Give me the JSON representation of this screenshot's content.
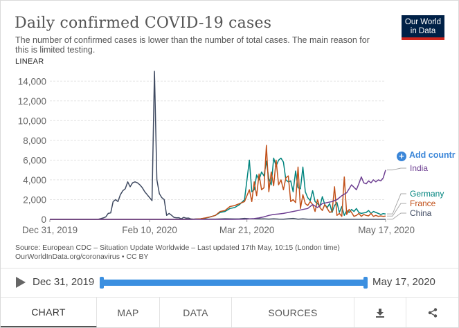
{
  "header": {
    "title": "Daily confirmed COVID-19 cases",
    "subtitle": "The number of confirmed cases is lower than the number of total cases. The main reason for this is limited testing.",
    "logo_line1": "Our World",
    "logo_line2": "in Data"
  },
  "controls": {
    "scale_toggle": "LINEAR",
    "add_country": "Add countr",
    "add_icon": "+"
  },
  "source": {
    "line1": "Source: European CDC – Situation Update Worldwide – Last updated 17th May, 10:15 (London time)",
    "line2": "OurWorldInData.org/coronavirus • CC BY"
  },
  "timeline": {
    "start": "Dec 31, 2019",
    "end": "May 17, 2020",
    "play_icon": "play-icon"
  },
  "tabs": {
    "chart": "CHART",
    "map": "MAP",
    "data": "DATA",
    "sources": "SOURCES",
    "download_icon": "download-icon",
    "share_icon": "share-icon"
  },
  "colors": {
    "china": "#3f4a61",
    "germany": "#00847e",
    "france": "#c15019",
    "india": "#6d3e91",
    "accent": "#3b86d8",
    "logo_bg": "#002147",
    "logo_bar": "#ce261e"
  },
  "chart_data": {
    "type": "line",
    "title": "Daily confirmed COVID-19 cases",
    "xlabel": "",
    "ylabel": "",
    "xlim": [
      0,
      138
    ],
    "ylim": [
      0,
      15000
    ],
    "x_ticks": [
      {
        "day": 0,
        "label": "Dec 31, 2019"
      },
      {
        "day": 41,
        "label": "Feb 10, 2020"
      },
      {
        "day": 81,
        "label": "Mar 21, 2020"
      },
      {
        "day": 138,
        "label": "May 17, 2020"
      }
    ],
    "y_ticks": [
      {
        "value": 0,
        "label": "0"
      },
      {
        "value": 2000,
        "label": "2,000"
      },
      {
        "value": 4000,
        "label": "4,000"
      },
      {
        "value": 6000,
        "label": "6,000"
      },
      {
        "value": 8000,
        "label": "8,000"
      },
      {
        "value": 10000,
        "label": "10,000"
      },
      {
        "value": 12000,
        "label": "12,000"
      },
      {
        "value": 14000,
        "label": "14,000"
      }
    ],
    "grid": true,
    "legend": "right, end-of-line labels",
    "series": [
      {
        "name": "China",
        "key": "china",
        "points": [
          [
            0,
            0
          ],
          [
            18,
            0
          ],
          [
            20,
            20
          ],
          [
            21,
            80
          ],
          [
            22,
            150
          ],
          [
            23,
            250
          ],
          [
            24,
            600
          ],
          [
            25,
            650
          ],
          [
            26,
            1800
          ],
          [
            27,
            2000
          ],
          [
            28,
            1800
          ],
          [
            29,
            2500
          ],
          [
            30,
            2900
          ],
          [
            31,
            3100
          ],
          [
            32,
            3800
          ],
          [
            33,
            3300
          ],
          [
            34,
            3700
          ],
          [
            35,
            3800
          ],
          [
            36,
            3700
          ],
          [
            37,
            3500
          ],
          [
            38,
            3200
          ],
          [
            39,
            2800
          ],
          [
            40,
            2500
          ],
          [
            41,
            2200
          ],
          [
            42,
            1900
          ],
          [
            43,
            15000
          ],
          [
            44,
            4000
          ],
          [
            45,
            2600
          ],
          [
            46,
            2200
          ],
          [
            47,
            2000
          ],
          [
            48,
            400
          ],
          [
            49,
            600
          ],
          [
            50,
            420
          ],
          [
            51,
            200
          ],
          [
            52,
            160
          ],
          [
            53,
            170
          ],
          [
            54,
            50
          ],
          [
            55,
            200
          ],
          [
            56,
            120
          ],
          [
            57,
            130
          ],
          [
            58,
            40
          ],
          [
            59,
            30
          ],
          [
            60,
            40
          ],
          [
            62,
            20
          ],
          [
            64,
            15
          ],
          [
            66,
            25
          ],
          [
            68,
            30
          ],
          [
            70,
            40
          ],
          [
            72,
            60
          ],
          [
            74,
            50
          ],
          [
            76,
            40
          ],
          [
            78,
            50
          ],
          [
            80,
            100
          ],
          [
            82,
            60
          ],
          [
            84,
            50
          ],
          [
            86,
            40
          ],
          [
            88,
            50
          ],
          [
            90,
            30
          ],
          [
            92,
            50
          ],
          [
            94,
            30
          ],
          [
            96,
            20
          ],
          [
            100,
            100
          ],
          [
            102,
            20
          ],
          [
            104,
            50
          ],
          [
            106,
            20
          ],
          [
            110,
            10
          ],
          [
            114,
            10
          ],
          [
            118,
            10
          ],
          [
            122,
            5
          ],
          [
            126,
            10
          ],
          [
            130,
            10
          ],
          [
            134,
            10
          ],
          [
            138,
            8
          ]
        ]
      },
      {
        "name": "Germany",
        "key": "germany",
        "points": [
          [
            0,
            0
          ],
          [
            55,
            0
          ],
          [
            58,
            0
          ],
          [
            60,
            20
          ],
          [
            62,
            60
          ],
          [
            64,
            120
          ],
          [
            66,
            250
          ],
          [
            68,
            400
          ],
          [
            70,
            700
          ],
          [
            72,
            800
          ],
          [
            74,
            1100
          ],
          [
            76,
            1200
          ],
          [
            78,
            1500
          ],
          [
            80,
            2000
          ],
          [
            82,
            6000
          ],
          [
            83,
            2800
          ],
          [
            84,
            3000
          ],
          [
            85,
            4500
          ],
          [
            86,
            4000
          ],
          [
            87,
            4800
          ],
          [
            88,
            4400
          ],
          [
            89,
            5900
          ],
          [
            90,
            4100
          ],
          [
            91,
            3500
          ],
          [
            92,
            6200
          ],
          [
            93,
            5400
          ],
          [
            94,
            6000
          ],
          [
            95,
            6200
          ],
          [
            96,
            5800
          ],
          [
            97,
            4000
          ],
          [
            98,
            3800
          ],
          [
            99,
            3900
          ],
          [
            100,
            2800
          ],
          [
            101,
            4900
          ],
          [
            102,
            3200
          ],
          [
            103,
            3100
          ],
          [
            104,
            5300
          ],
          [
            105,
            2800
          ],
          [
            106,
            2200
          ],
          [
            107,
            1900
          ],
          [
            108,
            2900
          ],
          [
            109,
            1800
          ],
          [
            110,
            1600
          ],
          [
            111,
            1300
          ],
          [
            112,
            2300
          ],
          [
            113,
            1500
          ],
          [
            114,
            1200
          ],
          [
            115,
            1600
          ],
          [
            116,
            700
          ],
          [
            117,
            1400
          ],
          [
            118,
            1700
          ],
          [
            119,
            700
          ],
          [
            120,
            1300
          ],
          [
            121,
            400
          ],
          [
            122,
            900
          ],
          [
            123,
            700
          ],
          [
            124,
            1000
          ],
          [
            125,
            800
          ],
          [
            126,
            1100
          ],
          [
            127,
            700
          ],
          [
            128,
            600
          ],
          [
            129,
            650
          ],
          [
            130,
            700
          ],
          [
            131,
            900
          ],
          [
            132,
            600
          ],
          [
            133,
            800
          ],
          [
            134,
            700
          ],
          [
            135,
            600
          ],
          [
            136,
            500
          ],
          [
            137,
            580
          ],
          [
            138,
            550
          ]
        ]
      },
      {
        "name": "France",
        "key": "france",
        "points": [
          [
            0,
            0
          ],
          [
            50,
            0
          ],
          [
            55,
            0
          ],
          [
            58,
            10
          ],
          [
            60,
            30
          ],
          [
            62,
            60
          ],
          [
            64,
            150
          ],
          [
            66,
            260
          ],
          [
            68,
            400
          ],
          [
            70,
            800
          ],
          [
            72,
            900
          ],
          [
            74,
            1300
          ],
          [
            76,
            1400
          ],
          [
            78,
            1600
          ],
          [
            80,
            1800
          ],
          [
            82,
            3000
          ],
          [
            83,
            1800
          ],
          [
            84,
            3800
          ],
          [
            85,
            2400
          ],
          [
            86,
            4600
          ],
          [
            87,
            3000
          ],
          [
            88,
            3200
          ],
          [
            89,
            7500
          ],
          [
            90,
            2800
          ],
          [
            91,
            4800
          ],
          [
            92,
            3400
          ],
          [
            93,
            6000
          ],
          [
            94,
            3500
          ],
          [
            95,
            4000
          ],
          [
            96,
            3000
          ],
          [
            97,
            4200
          ],
          [
            98,
            4400
          ],
          [
            99,
            1800
          ],
          [
            100,
            2000
          ],
          [
            101,
            1700
          ],
          [
            102,
            5300
          ],
          [
            103,
            1100
          ],
          [
            104,
            2500
          ],
          [
            105,
            1600
          ],
          [
            106,
            1400
          ],
          [
            107,
            1800
          ],
          [
            108,
            1500
          ],
          [
            109,
            800
          ],
          [
            110,
            2000
          ],
          [
            111,
            1200
          ],
          [
            112,
            900
          ],
          [
            113,
            1500
          ],
          [
            114,
            1100
          ],
          [
            115,
            700
          ],
          [
            116,
            800
          ],
          [
            117,
            3300
          ],
          [
            118,
            400
          ],
          [
            119,
            600
          ],
          [
            120,
            300
          ],
          [
            121,
            4300
          ],
          [
            122,
            500
          ],
          [
            123,
            1000
          ],
          [
            124,
            700
          ],
          [
            125,
            300
          ],
          [
            126,
            400
          ],
          [
            127,
            600
          ],
          [
            128,
            300
          ],
          [
            129,
            500
          ],
          [
            130,
            400
          ],
          [
            131,
            350
          ],
          [
            132,
            600
          ],
          [
            133,
            300
          ],
          [
            134,
            400
          ],
          [
            135,
            300
          ],
          [
            136,
            350
          ],
          [
            137,
            300
          ],
          [
            138,
            330
          ]
        ]
      },
      {
        "name": "India",
        "key": "india",
        "points": [
          [
            0,
            0
          ],
          [
            60,
            0
          ],
          [
            70,
            0
          ],
          [
            75,
            0
          ],
          [
            80,
            20
          ],
          [
            82,
            50
          ],
          [
            84,
            80
          ],
          [
            86,
            150
          ],
          [
            88,
            250
          ],
          [
            90,
            400
          ],
          [
            92,
            500
          ],
          [
            94,
            550
          ],
          [
            96,
            600
          ],
          [
            98,
            700
          ],
          [
            100,
            800
          ],
          [
            102,
            900
          ],
          [
            104,
            1000
          ],
          [
            106,
            1100
          ],
          [
            108,
            1500
          ],
          [
            110,
            1200
          ],
          [
            112,
            1600
          ],
          [
            114,
            1700
          ],
          [
            116,
            1800
          ],
          [
            118,
            2000
          ],
          [
            120,
            2400
          ],
          [
            122,
            2700
          ],
          [
            124,
            3500
          ],
          [
            126,
            3000
          ],
          [
            127,
            3600
          ],
          [
            128,
            4300
          ],
          [
            129,
            3700
          ],
          [
            130,
            3600
          ],
          [
            131,
            3900
          ],
          [
            132,
            3700
          ],
          [
            133,
            4000
          ],
          [
            134,
            3800
          ],
          [
            135,
            4000
          ],
          [
            136,
            3900
          ],
          [
            137,
            4200
          ],
          [
            138,
            5000
          ]
        ]
      }
    ]
  }
}
